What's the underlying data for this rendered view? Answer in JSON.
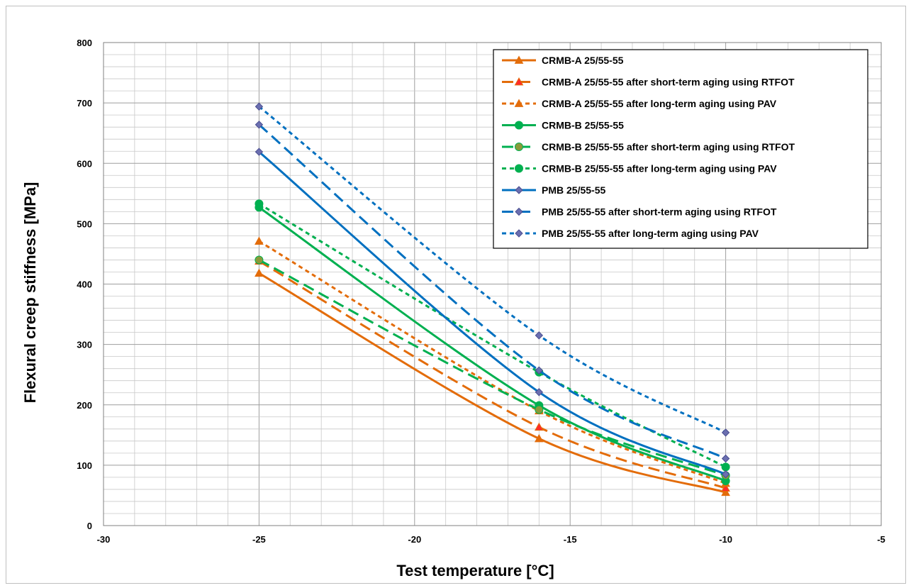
{
  "chart_data": {
    "type": "line",
    "xlabel": "Test temperature  [°C]",
    "ylabel": "Flexural creep stiffness [MPa]",
    "xlim": [
      -30,
      -5
    ],
    "ylim": [
      0,
      800
    ],
    "x_ticks": [
      "-30",
      "-25",
      "-20",
      "-15",
      "-10",
      "-5"
    ],
    "y_ticks": [
      "0",
      "100",
      "200",
      "300",
      "400",
      "500",
      "600",
      "700",
      "800"
    ],
    "grid": true,
    "legend_position": "top-right",
    "series": [
      {
        "name": "CRMB-A 25/55-55",
        "x": [
          -25,
          -16,
          -10
        ],
        "y": [
          418,
          144,
          55
        ],
        "color": "#E36C0A",
        "dash": "solid",
        "marker": "triangle"
      },
      {
        "name": "CRMB-A 25/55-55 after short-term aging using RTFOT",
        "x": [
          -25,
          -16,
          -10
        ],
        "y": [
          438,
          163,
          62
        ],
        "color": "#E36C0A",
        "dash": "longdash",
        "marker": "triangle-red"
      },
      {
        "name": "CRMB-A 25/55-55 after long-term aging using PAV",
        "x": [
          -25,
          -16,
          -10
        ],
        "y": [
          471,
          190,
          70
        ],
        "color": "#E36C0A",
        "dash": "shortdash",
        "marker": "triangle"
      },
      {
        "name": "CRMB-B 25/55-55",
        "x": [
          -25,
          -16,
          -10
        ],
        "y": [
          527,
          199,
          74
        ],
        "color": "#00B050",
        "dash": "solid",
        "marker": "circle"
      },
      {
        "name": "CRMB-B 25/55-55 after short-term aging using RTFOT",
        "x": [
          -25,
          -16,
          -10
        ],
        "y": [
          440,
          192,
          83
        ],
        "color": "#00B050",
        "dash": "longdash",
        "marker": "circle-olive"
      },
      {
        "name": "CRMB-B 25/55-55 after long-term aging using PAV",
        "x": [
          -25,
          -16,
          -10
        ],
        "y": [
          533,
          254,
          97
        ],
        "color": "#00B050",
        "dash": "shortdash",
        "marker": "circle"
      },
      {
        "name": "PMB 25/55-55",
        "x": [
          -25,
          -16,
          -10
        ],
        "y": [
          619,
          221,
          85
        ],
        "color": "#0070C0",
        "dash": "solid",
        "marker": "diamond"
      },
      {
        "name": "PMB 25/55-55 after short-term aging using RTFOT",
        "x": [
          -25,
          -16,
          -10
        ],
        "y": [
          664,
          257,
          111
        ],
        "color": "#0070C0",
        "dash": "longdash",
        "marker": "diamond"
      },
      {
        "name": "PMB 25/55-55 after long-term aging using PAV",
        "x": [
          -25,
          -16,
          -10
        ],
        "y": [
          694,
          315,
          154
        ],
        "color": "#0070C0",
        "dash": "shortdash",
        "marker": "diamond"
      }
    ]
  }
}
